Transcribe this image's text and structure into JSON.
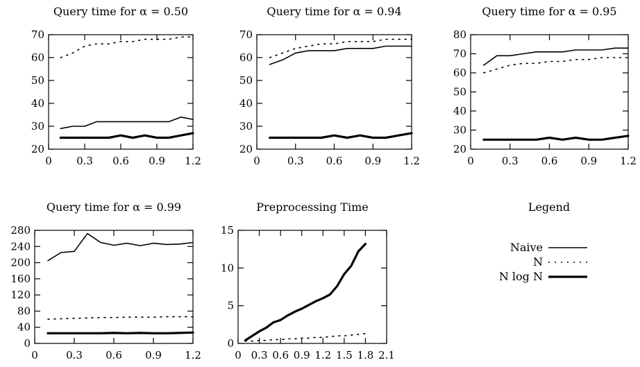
{
  "chart_data": [
    {
      "type": "line",
      "title": "Query time for α = 0.50",
      "xlabel": "",
      "ylabel": "",
      "xlim": [
        0,
        1.2
      ],
      "ylim": [
        20,
        70
      ],
      "xticks": [
        0,
        0.3,
        0.6,
        0.9,
        1.2
      ],
      "xtick_labels": [
        "0",
        "0.3",
        "0.6",
        "0.9",
        "1.2"
      ],
      "yticks": [
        20,
        30,
        40,
        50,
        60,
        70
      ],
      "ytick_labels": [
        "20",
        "30",
        "40",
        "50",
        "60",
        "70"
      ],
      "series": [
        {
          "name": "Naive",
          "x": [
            0.1,
            0.2,
            0.3,
            0.4,
            0.5,
            0.6,
            0.7,
            0.8,
            0.9,
            1.0,
            1.1,
            1.2
          ],
          "y": [
            29,
            30,
            30,
            32,
            32,
            32,
            32,
            32,
            32,
            32,
            34,
            33
          ]
        },
        {
          "name": "N",
          "x": [
            0.1,
            0.2,
            0.3,
            0.4,
            0.5,
            0.6,
            0.7,
            0.8,
            0.9,
            1.0,
            1.1,
            1.2
          ],
          "y": [
            60,
            62,
            65,
            66,
            66,
            67,
            67,
            68,
            68,
            68,
            69,
            69
          ]
        },
        {
          "name": "N log N",
          "x": [
            0.1,
            0.2,
            0.3,
            0.4,
            0.5,
            0.6,
            0.7,
            0.8,
            0.9,
            1.0,
            1.1,
            1.2
          ],
          "y": [
            25,
            25,
            25,
            25,
            25,
            26,
            25,
            26,
            25,
            25,
            26,
            27
          ]
        }
      ]
    },
    {
      "type": "line",
      "title": "Query time for α = 0.94",
      "xlabel": "",
      "ylabel": "",
      "xlim": [
        0,
        1.2
      ],
      "ylim": [
        20,
        70
      ],
      "xticks": [
        0,
        0.3,
        0.6,
        0.9,
        1.2
      ],
      "xtick_labels": [
        "0",
        "0.3",
        "0.6",
        "0.9",
        "1.2"
      ],
      "yticks": [
        20,
        30,
        40,
        50,
        60,
        70
      ],
      "ytick_labels": [
        "20",
        "30",
        "40",
        "50",
        "60",
        "70"
      ],
      "series": [
        {
          "name": "Naive",
          "x": [
            0.1,
            0.2,
            0.3,
            0.4,
            0.5,
            0.6,
            0.7,
            0.8,
            0.9,
            1.0,
            1.1,
            1.2
          ],
          "y": [
            57,
            59,
            62,
            63,
            63,
            63,
            64,
            64,
            64,
            65,
            65,
            65
          ]
        },
        {
          "name": "N",
          "x": [
            0.1,
            0.2,
            0.3,
            0.4,
            0.5,
            0.6,
            0.7,
            0.8,
            0.9,
            1.0,
            1.1,
            1.2
          ],
          "y": [
            60,
            62,
            64,
            65,
            66,
            66,
            67,
            67,
            67,
            68,
            68,
            68
          ]
        },
        {
          "name": "N log N",
          "x": [
            0.1,
            0.2,
            0.3,
            0.4,
            0.5,
            0.6,
            0.7,
            0.8,
            0.9,
            1.0,
            1.1,
            1.2
          ],
          "y": [
            25,
            25,
            25,
            25,
            25,
            26,
            25,
            26,
            25,
            25,
            26,
            27
          ]
        }
      ]
    },
    {
      "type": "line",
      "title": "Query time for α = 0.95",
      "xlabel": "",
      "ylabel": "",
      "xlim": [
        0,
        1.2
      ],
      "ylim": [
        20,
        80
      ],
      "xticks": [
        0,
        0.3,
        0.6,
        0.9,
        1.2
      ],
      "xtick_labels": [
        "0",
        "0.3",
        "0.6",
        "0.9",
        "1.2"
      ],
      "yticks": [
        20,
        30,
        40,
        50,
        60,
        70,
        80
      ],
      "ytick_labels": [
        "20",
        "30",
        "40",
        "50",
        "60",
        "70",
        "80"
      ],
      "series": [
        {
          "name": "Naive",
          "x": [
            0.1,
            0.2,
            0.3,
            0.4,
            0.5,
            0.6,
            0.7,
            0.8,
            0.9,
            1.0,
            1.1,
            1.2
          ],
          "y": [
            64,
            69,
            69,
            70,
            71,
            71,
            71,
            72,
            72,
            72,
            73,
            73
          ]
        },
        {
          "name": "N",
          "x": [
            0.1,
            0.2,
            0.3,
            0.4,
            0.5,
            0.6,
            0.7,
            0.8,
            0.9,
            1.0,
            1.1,
            1.2
          ],
          "y": [
            60,
            62,
            64,
            65,
            65,
            66,
            66,
            67,
            67,
            68,
            68,
            68
          ]
        },
        {
          "name": "N log N",
          "x": [
            0.1,
            0.2,
            0.3,
            0.4,
            0.5,
            0.6,
            0.7,
            0.8,
            0.9,
            1.0,
            1.1,
            1.2
          ],
          "y": [
            25,
            25,
            25,
            25,
            25,
            26,
            25,
            26,
            25,
            25,
            26,
            27
          ]
        }
      ]
    },
    {
      "type": "line",
      "title": "Query time for α = 0.99",
      "xlabel": "",
      "ylabel": "",
      "xlim": [
        0,
        1.2
      ],
      "ylim": [
        0,
        280
      ],
      "xticks": [
        0,
        0.3,
        0.6,
        0.9,
        1.2
      ],
      "xtick_labels": [
        "0",
        "0.3",
        "0.6",
        "0.9",
        "1.2"
      ],
      "yticks": [
        0,
        40,
        80,
        120,
        160,
        200,
        240,
        280
      ],
      "ytick_labels": [
        "0",
        "40",
        "80",
        "120",
        "160",
        "200",
        "240",
        "280"
      ],
      "series": [
        {
          "name": "Naive",
          "x": [
            0.1,
            0.2,
            0.3,
            0.4,
            0.5,
            0.6,
            0.7,
            0.8,
            0.9,
            1.0,
            1.1,
            1.2
          ],
          "y": [
            205,
            225,
            228,
            272,
            250,
            243,
            248,
            242,
            248,
            245,
            246,
            250
          ]
        },
        {
          "name": "N",
          "x": [
            0.1,
            0.2,
            0.3,
            0.4,
            0.5,
            0.6,
            0.7,
            0.8,
            0.9,
            1.0,
            1.1,
            1.2
          ],
          "y": [
            60,
            61,
            62,
            63,
            64,
            64,
            65,
            65,
            65,
            66,
            66,
            66
          ]
        },
        {
          "name": "N log N",
          "x": [
            0.1,
            0.2,
            0.3,
            0.4,
            0.5,
            0.6,
            0.7,
            0.8,
            0.9,
            1.0,
            1.1,
            1.2
          ],
          "y": [
            25,
            25,
            25,
            25,
            25,
            26,
            25,
            26,
            25,
            25,
            26,
            27
          ]
        }
      ]
    },
    {
      "type": "line",
      "title": "Preprocessing Time",
      "xlabel": "",
      "ylabel": "",
      "xlim": [
        0,
        2.1
      ],
      "ylim": [
        0,
        15
      ],
      "xticks": [
        0,
        0.3,
        0.6,
        0.9,
        1.2,
        1.5,
        1.8,
        2.1
      ],
      "xtick_labels": [
        "0",
        "0.3",
        "0.6",
        "0.9",
        "1.2",
        "1.5",
        "1.8",
        "2.1"
      ],
      "yticks": [
        0,
        5,
        10,
        15
      ],
      "ytick_labels": [
        "0",
        "5",
        "10",
        "15"
      ],
      "series": [
        {
          "name": "Naive",
          "x": [
            0.1,
            0.2,
            0.3,
            0.4,
            0.5,
            0.6,
            0.7,
            0.8,
            0.9,
            1.0,
            1.1,
            1.2,
            1.3,
            1.4,
            1.5,
            1.6,
            1.7,
            1.8
          ],
          "y": [
            0.4,
            1.0,
            1.6,
            2.1,
            2.8,
            3.1,
            3.7,
            4.2,
            4.6,
            5.1,
            5.6,
            6.0,
            6.5,
            7.6,
            9.2,
            10.3,
            12.2,
            13.2
          ]
        },
        {
          "name": "N",
          "x": [
            0.1,
            0.2,
            0.3,
            0.4,
            0.5,
            0.6,
            0.7,
            0.8,
            0.9,
            1.0,
            1.1,
            1.2,
            1.3,
            1.4,
            1.5,
            1.6,
            1.7,
            1.8
          ],
          "y": [
            0.3,
            0.3,
            0.4,
            0.4,
            0.5,
            0.5,
            0.6,
            0.6,
            0.7,
            0.7,
            0.8,
            0.8,
            0.9,
            1.0,
            1.0,
            1.1,
            1.2,
            1.3
          ]
        },
        {
          "name": "N log N",
          "x": [
            0.1,
            0.2,
            0.3,
            0.4,
            0.5,
            0.6,
            0.7,
            0.8,
            0.9,
            1.0,
            1.1,
            1.2,
            1.3,
            1.4,
            1.5,
            1.6,
            1.7,
            1.8
          ],
          "y": [
            0.4,
            1.0,
            1.6,
            2.1,
            2.8,
            3.1,
            3.7,
            4.2,
            4.6,
            5.1,
            5.6,
            6.0,
            6.5,
            7.6,
            9.2,
            10.3,
            12.2,
            13.2
          ]
        }
      ]
    }
  ],
  "legend": {
    "title": "Legend",
    "entries": [
      {
        "label": "Naive",
        "style": "thin-solid"
      },
      {
        "label": "N",
        "style": "dotted"
      },
      {
        "label": "N log N",
        "style": "thick-solid"
      }
    ]
  },
  "colors": {
    "line": "#000000",
    "background": "#ffffff"
  }
}
